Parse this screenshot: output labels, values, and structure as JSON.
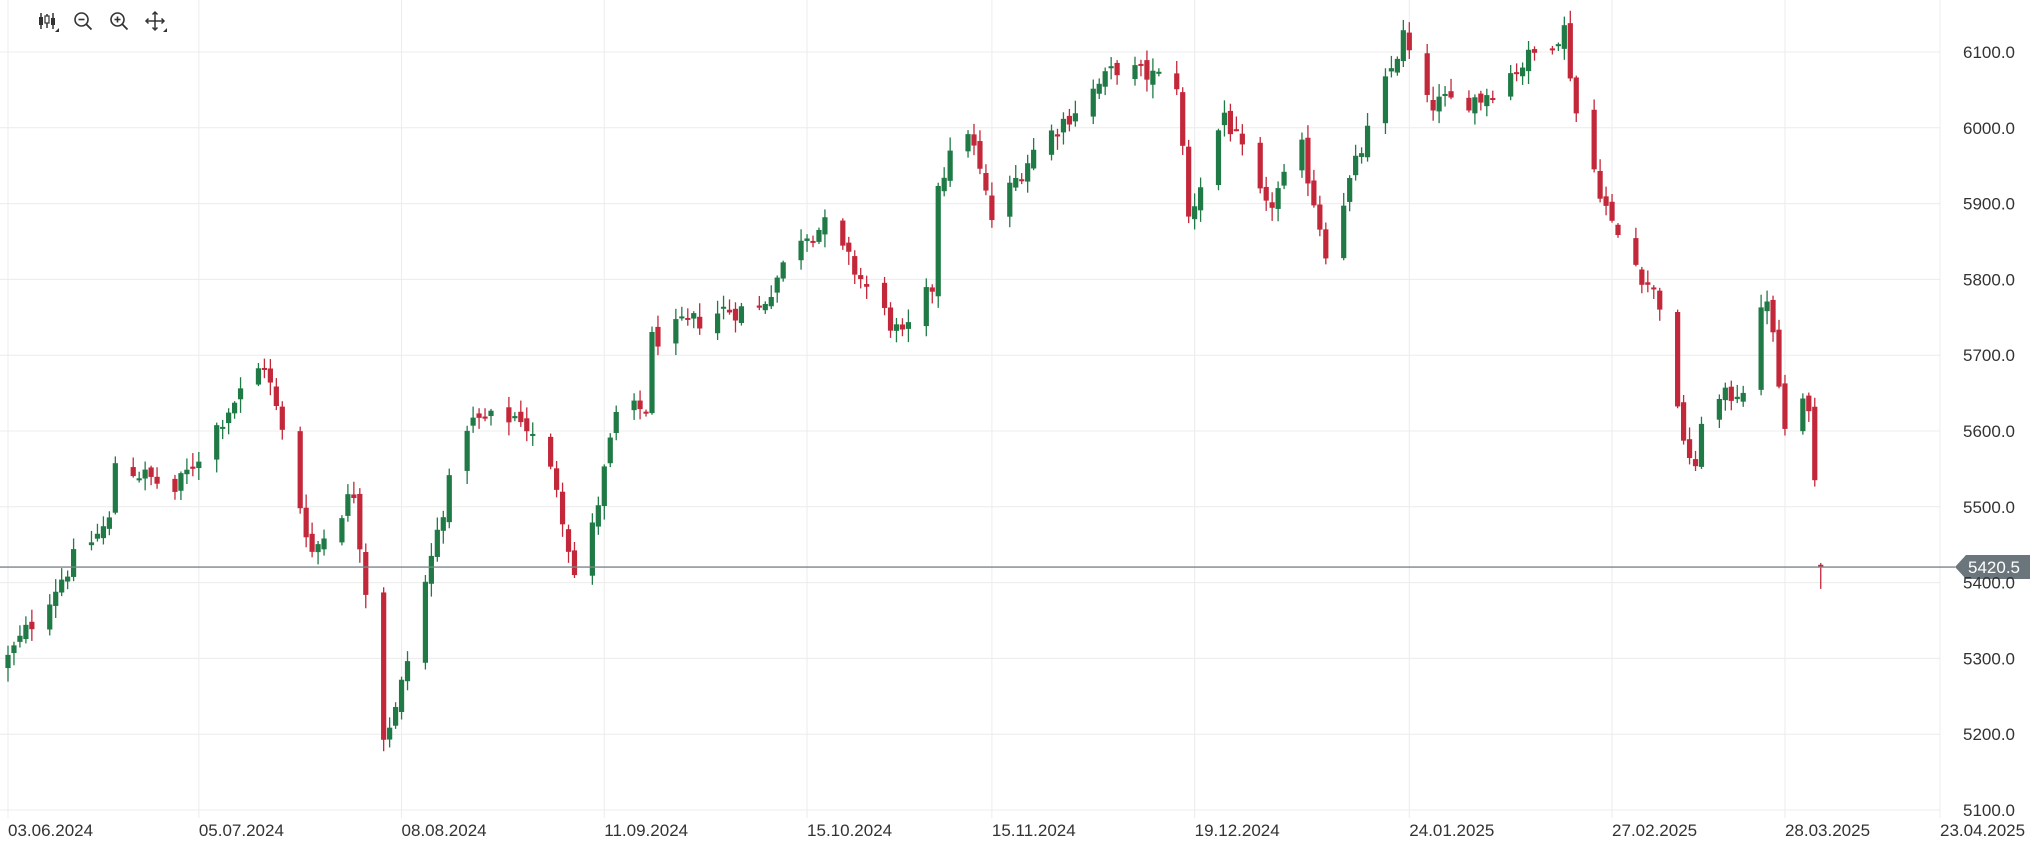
{
  "toolbar": {
    "icons": [
      "candlestick-type-icon",
      "zoom-out-icon",
      "zoom-in-icon",
      "pan-move-icon"
    ]
  },
  "colors": {
    "up": "#1f7a45",
    "down": "#c3273a",
    "grid": "#ececec",
    "axis_text": "#333333",
    "price_line": "#7a858c",
    "price_tag": "#6b757c"
  },
  "chart_data": {
    "type": "candlestick",
    "title": "",
    "xlabel": "",
    "ylabel": "",
    "ylim": [
      5100,
      6150
    ],
    "y_ticks": [
      "5100.0",
      "5200.0",
      "5300.0",
      "5400.0",
      "5500.0",
      "5600.0",
      "5700.0",
      "5800.0",
      "5900.0",
      "6000.0",
      "6100.0"
    ],
    "x_ticks": [
      "03.06.2024",
      "05.07.2024",
      "08.08.2024",
      "11.09.2024",
      "15.10.2024",
      "15.11.2024",
      "19.12.2024",
      "24.01.2025",
      "27.02.2025",
      "28.03.2025",
      "23.04.2025"
    ],
    "x_range": [
      "03.06.2024",
      "23.04.2025"
    ],
    "grid": true,
    "current_price": "5420.5",
    "anchors": [
      [
        "2024-06-03",
        5300
      ],
      [
        "2024-06-14",
        5430
      ],
      [
        "2024-06-20",
        5480
      ],
      [
        "2024-06-21",
        5560
      ],
      [
        "2024-07-01",
        5520
      ],
      [
        "2024-07-10",
        5630
      ],
      [
        "2024-07-16",
        5690
      ],
      [
        "2024-07-24",
        5440
      ],
      [
        "2024-07-31",
        5520
      ],
      [
        "2024-08-05",
        5200
      ],
      [
        "2024-08-07",
        5230
      ],
      [
        "2024-08-15",
        5500
      ],
      [
        "2024-08-19",
        5610
      ],
      [
        "2024-08-28",
        5620
      ],
      [
        "2024-09-03",
        5530
      ],
      [
        "2024-09-06",
        5410
      ],
      [
        "2024-09-09",
        5470
      ],
      [
        "2024-09-13",
        5620
      ],
      [
        "2024-09-18",
        5630
      ],
      [
        "2024-09-19",
        5720
      ],
      [
        "2024-10-01",
        5760
      ],
      [
        "2024-10-07",
        5760
      ],
      [
        "2024-10-14",
        5860
      ],
      [
        "2024-10-18",
        5870
      ],
      [
        "2024-10-31",
        5720
      ],
      [
        "2024-11-05",
        5790
      ],
      [
        "2024-11-06",
        5930
      ],
      [
        "2024-11-11",
        6000
      ],
      [
        "2024-11-15",
        5880
      ],
      [
        "2024-11-22",
        5970
      ],
      [
        "2024-12-06",
        6080
      ],
      [
        "2024-12-16",
        6060
      ],
      [
        "2024-12-18",
        5880
      ],
      [
        "2024-12-24",
        6020
      ],
      [
        "2024-12-31",
        5890
      ],
      [
        "2025-01-06",
        5970
      ],
      [
        "2025-01-10",
        5840
      ],
      [
        "2025-01-15",
        5950
      ],
      [
        "2025-01-23",
        6120
      ],
      [
        "2025-01-27",
        6030
      ],
      [
        "2025-02-05",
        6040
      ],
      [
        "2025-02-19",
        6130
      ],
      [
        "2025-02-21",
        6020
      ],
      [
        "2025-02-27",
        5870
      ],
      [
        "2025-03-07",
        5770
      ],
      [
        "2025-03-10",
        5620
      ],
      [
        "2025-03-13",
        5540
      ],
      [
        "2025-03-14",
        5620
      ],
      [
        "2025-03-21",
        5660
      ],
      [
        "2025-03-25",
        5780
      ],
      [
        "2025-03-28",
        5600
      ],
      [
        "2025-04-01",
        5640
      ],
      [
        "2025-04-03",
        5420.5
      ]
    ]
  }
}
